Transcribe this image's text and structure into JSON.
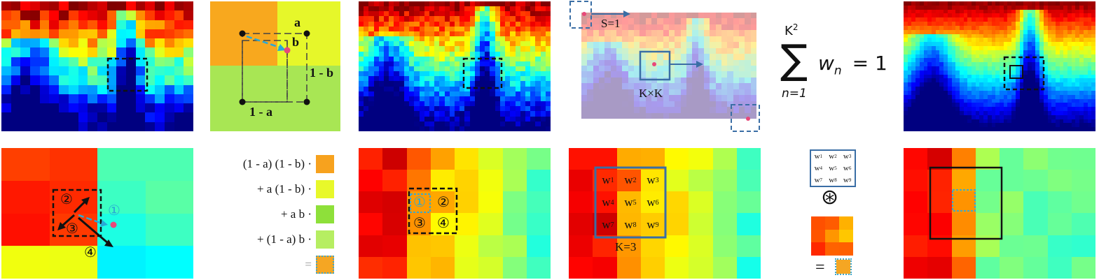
{
  "labels": {
    "a": "a",
    "b": "b",
    "one_minus_b": "1 - b",
    "one_minus_a": "1 - a",
    "stride": "S=1",
    "kxk": "K×K",
    "k3": "K=3",
    "sum_upper": "K",
    "sum_upper_sup": "2",
    "sum_symbol": "∑",
    "sum_body": "w",
    "sum_sub": "n",
    "sum_eq": "= 1",
    "sum_lower": "n=1",
    "circle1": "①",
    "circle2": "②",
    "circle3": "③",
    "circle4": "④",
    "conv_symbol": "⊛",
    "equals": "="
  },
  "legend": [
    {
      "text": "(1 - a) (1 - b) ·",
      "color": "#f7a21e"
    },
    {
      "text": "+ a (1 - b) ·",
      "color": "#e8f82a"
    },
    {
      "text": "+ a b ·",
      "color": "#8ee03a"
    },
    {
      "text": "+ (1 - a) b ·",
      "color": "#b6ee62"
    },
    {
      "text": "=",
      "color": "#f5a623"
    }
  ],
  "weights": [
    "w1",
    "w2",
    "w3",
    "w4",
    "w5",
    "w6",
    "w7",
    "w8",
    "w9"
  ],
  "weight_parts": [
    [
      "w",
      "1"
    ],
    [
      "w",
      "2"
    ],
    [
      "w",
      "3"
    ],
    [
      "w",
      "4"
    ],
    [
      "w",
      "5"
    ],
    [
      "w",
      "6"
    ],
    [
      "w",
      "7"
    ],
    [
      "w",
      "8"
    ],
    [
      "w",
      "9"
    ]
  ],
  "colors": {
    "dashed_box": "#111111",
    "blue_box": "#3a6ea5",
    "cyan_arrow": "#29a9d6",
    "pink_dot": "#e8487a",
    "dotted_cyan": "#3fa7c9"
  }
}
